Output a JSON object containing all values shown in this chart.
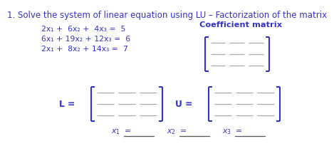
{
  "title": "1. Solve the system of linear equation using LU – Factorization of the matrix",
  "title_fontsize": 8.5,
  "eq1": "2x₁ +  6x₂ +  4x₃ =  5",
  "eq2": "6x₁ + 19x₂ + 12x₃ =  6",
  "eq3": "2x₁ +  8x₂ + 14x₃ =  7",
  "coeff_label": "Coefficient matrix",
  "L_label": "L =",
  "U_label": "U =",
  "x1_label": "$x_1$ =",
  "x2_label": "$x_2$ =",
  "x3_label": "$x_3$ =",
  "text_color": "#3333cc",
  "bracket_color": "#3333cc",
  "line_color": "#aaaaaa",
  "background": "#ffffff",
  "eq_fontsize": 7.8,
  "label_fontsize": 7.8,
  "coeff_fontsize": 8.2
}
